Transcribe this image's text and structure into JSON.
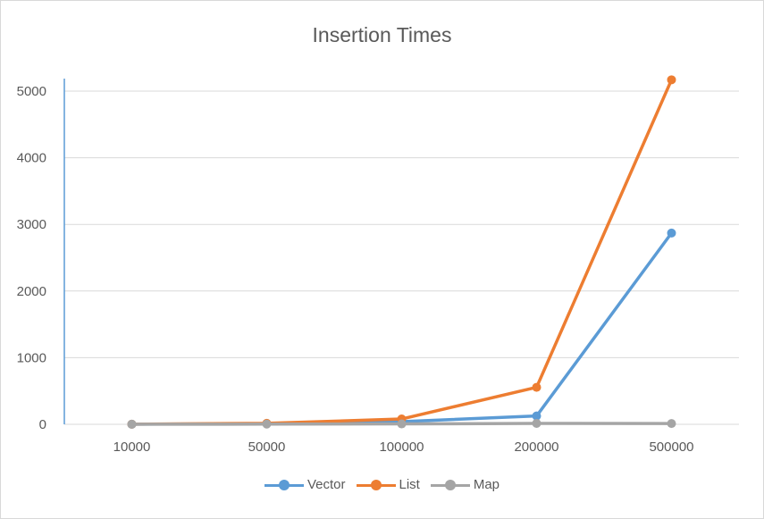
{
  "chart_data": {
    "type": "line",
    "title": "Insertion Times",
    "categories": [
      "10000",
      "50000",
      "100000",
      "200000",
      "500000"
    ],
    "ylim": [
      0,
      5000
    ],
    "yticks": [
      0,
      1000,
      2000,
      3000,
      4000,
      5000
    ],
    "grid": true,
    "legend_position": "bottom",
    "series": [
      {
        "name": "Vector",
        "color": "#5b9bd5",
        "values": [
          1,
          10,
          40,
          125,
          2870
        ]
      },
      {
        "name": "List",
        "color": "#ed7d31",
        "values": [
          2,
          15,
          80,
          555,
          5170
        ]
      },
      {
        "name": "Map",
        "color": "#a5a5a5",
        "values": [
          1,
          3,
          6,
          14,
          12
        ]
      }
    ]
  }
}
